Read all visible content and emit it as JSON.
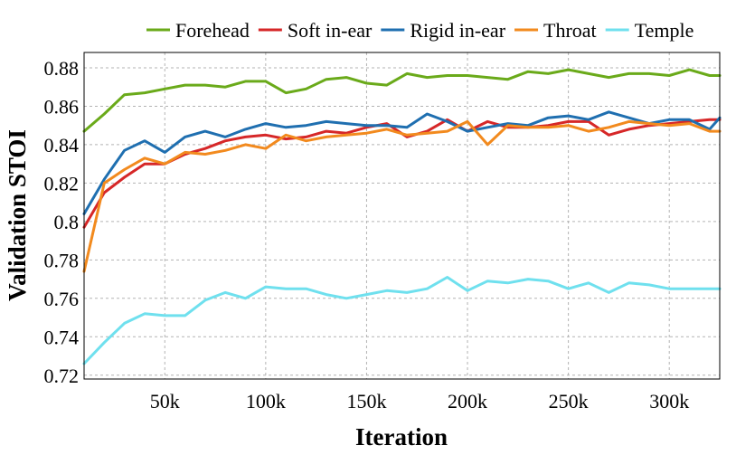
{
  "chart_data": {
    "type": "line",
    "title": "",
    "xlabel": "Iteration",
    "ylabel": "Validation STOI",
    "xlim": [
      10000,
      325000
    ],
    "ylim": [
      0.718,
      0.888
    ],
    "xticks": [
      {
        "value": 50000,
        "label": "50k"
      },
      {
        "value": 100000,
        "label": "100k"
      },
      {
        "value": 150000,
        "label": "150k"
      },
      {
        "value": 200000,
        "label": "200k"
      },
      {
        "value": 250000,
        "label": "250k"
      },
      {
        "value": 300000,
        "label": "300k"
      }
    ],
    "yticks": [
      {
        "value": 0.72,
        "label": "0.72"
      },
      {
        "value": 0.74,
        "label": "0.74"
      },
      {
        "value": 0.76,
        "label": "0.76"
      },
      {
        "value": 0.78,
        "label": "0.78"
      },
      {
        "value": 0.8,
        "label": "0.8"
      },
      {
        "value": 0.82,
        "label": "0.82"
      },
      {
        "value": 0.84,
        "label": "0.84"
      },
      {
        "value": 0.86,
        "label": "0.86"
      },
      {
        "value": 0.88,
        "label": "0.88"
      }
    ],
    "grid": true,
    "legend_position": "top",
    "x": [
      10000,
      20000,
      30000,
      40000,
      50000,
      60000,
      70000,
      80000,
      90000,
      100000,
      110000,
      120000,
      130000,
      140000,
      150000,
      160000,
      170000,
      180000,
      190000,
      200000,
      210000,
      220000,
      230000,
      240000,
      250000,
      260000,
      270000,
      280000,
      290000,
      300000,
      310000,
      320000,
      325000
    ],
    "series": [
      {
        "name": "Forehead",
        "color": "#6aaa1a",
        "values": [
          0.847,
          0.856,
          0.866,
          0.867,
          0.869,
          0.871,
          0.871,
          0.87,
          0.873,
          0.873,
          0.867,
          0.869,
          0.874,
          0.875,
          0.872,
          0.871,
          0.877,
          0.875,
          0.876,
          0.876,
          0.875,
          0.874,
          0.878,
          0.877,
          0.879,
          0.877,
          0.875,
          0.877,
          0.877,
          0.876,
          0.879,
          0.876,
          0.876
        ]
      },
      {
        "name": "Soft in-ear",
        "color": "#d62728",
        "values": [
          0.797,
          0.815,
          0.823,
          0.83,
          0.83,
          0.835,
          0.838,
          0.842,
          0.844,
          0.845,
          0.843,
          0.844,
          0.847,
          0.846,
          0.849,
          0.851,
          0.844,
          0.847,
          0.853,
          0.847,
          0.852,
          0.849,
          0.849,
          0.85,
          0.852,
          0.852,
          0.845,
          0.848,
          0.85,
          0.851,
          0.852,
          0.853,
          0.853
        ]
      },
      {
        "name": "Rigid in-ear",
        "color": "#1f6fb0",
        "values": [
          0.804,
          0.822,
          0.837,
          0.842,
          0.836,
          0.844,
          0.847,
          0.844,
          0.848,
          0.851,
          0.849,
          0.85,
          0.852,
          0.851,
          0.85,
          0.85,
          0.849,
          0.856,
          0.852,
          0.847,
          0.849,
          0.851,
          0.85,
          0.854,
          0.855,
          0.853,
          0.857,
          0.854,
          0.851,
          0.853,
          0.853,
          0.848,
          0.854
        ]
      },
      {
        "name": "Throat",
        "color": "#f28a1e",
        "values": [
          0.774,
          0.82,
          0.827,
          0.833,
          0.83,
          0.836,
          0.835,
          0.837,
          0.84,
          0.838,
          0.845,
          0.842,
          0.844,
          0.845,
          0.846,
          0.848,
          0.845,
          0.846,
          0.847,
          0.852,
          0.84,
          0.85,
          0.849,
          0.849,
          0.85,
          0.847,
          0.849,
          0.852,
          0.851,
          0.85,
          0.851,
          0.847,
          0.847
        ]
      },
      {
        "name": "Temple",
        "color": "#6fe0ee",
        "values": [
          0.726,
          0.737,
          0.747,
          0.752,
          0.751,
          0.751,
          0.759,
          0.763,
          0.76,
          0.766,
          0.765,
          0.765,
          0.762,
          0.76,
          0.762,
          0.764,
          0.763,
          0.765,
          0.771,
          0.764,
          0.769,
          0.768,
          0.77,
          0.769,
          0.765,
          0.768,
          0.763,
          0.768,
          0.767,
          0.765,
          0.765,
          0.765,
          0.765
        ]
      }
    ]
  }
}
